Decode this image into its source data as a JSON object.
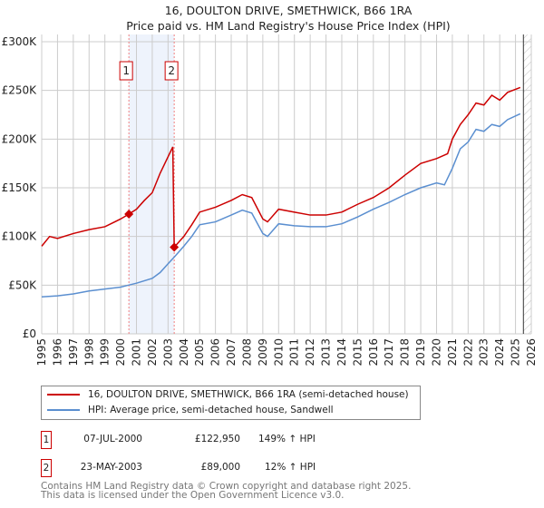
{
  "chart_data": {
    "type": "line",
    "title": "16, DOULTON DRIVE, SMETHWICK, B66 1RA",
    "subtitle": "Price paid vs. HM Land Registry's House Price Index (HPI)",
    "xlim": [
      1995,
      2026
    ],
    "ylim": [
      0,
      300000
    ],
    "x_ticks": [
      "1995",
      "1996",
      "1997",
      "1998",
      "1999",
      "2000",
      "2001",
      "2002",
      "2003",
      "2004",
      "2005",
      "2006",
      "2007",
      "2008",
      "2009",
      "2010",
      "2011",
      "2012",
      "2013",
      "2014",
      "2015",
      "2016",
      "2017",
      "2018",
      "2019",
      "2020",
      "2021",
      "2022",
      "2023",
      "2024",
      "2025",
      "2026"
    ],
    "y_ticks": [
      {
        "v": 0,
        "label": "£0"
      },
      {
        "v": 50000,
        "label": "£50K"
      },
      {
        "v": 100000,
        "label": "£100K"
      },
      {
        "v": 150000,
        "label": "£150K"
      },
      {
        "v": 200000,
        "label": "£200K"
      },
      {
        "v": 250000,
        "label": "£250K"
      },
      {
        "v": 300000,
        "label": "£300K"
      }
    ],
    "grid": true,
    "series": [
      {
        "name": "16, DOULTON DRIVE, SMETHWICK, B66 1RA (semi-detached house)",
        "color": "#cc0000",
        "x": [
          1995,
          1995.5,
          1996,
          1997,
          1998,
          1999,
          2000,
          2000.52,
          2001,
          2001.5,
          2002,
          2002.5,
          2003.3,
          2003.39,
          2004,
          2004.5,
          2005,
          2006,
          2007,
          2007.7,
          2008.3,
          2009,
          2009.3,
          2010,
          2011,
          2012,
          2013,
          2014,
          2015,
          2016,
          2017,
          2018,
          2019,
          2020,
          2020.7,
          2021,
          2021.5,
          2022,
          2022.5,
          2023,
          2023.5,
          2024,
          2024.5,
          2025.3
        ],
        "y": [
          90000,
          100000,
          98000,
          103000,
          107000,
          110000,
          118000,
          122950,
          128000,
          137000,
          145000,
          165000,
          192000,
          89000,
          100000,
          112000,
          125000,
          130000,
          137000,
          143000,
          140000,
          118000,
          115000,
          128000,
          125000,
          122000,
          122000,
          125000,
          133000,
          140000,
          150000,
          163000,
          175000,
          180000,
          185000,
          200000,
          215000,
          225000,
          237000,
          235000,
          245000,
          240000,
          248000,
          253000
        ]
      },
      {
        "name": "HPI: Average price, semi-detached house, Sandwell",
        "color": "#5b8fd0",
        "x": [
          1995,
          1996,
          1997,
          1998,
          1999,
          2000,
          2000.5,
          2001,
          2002,
          2002.5,
          2003,
          2003.4,
          2004,
          2004.5,
          2005,
          2006,
          2007,
          2007.7,
          2008.3,
          2009,
          2009.3,
          2010,
          2011,
          2012,
          2013,
          2014,
          2015,
          2016,
          2017,
          2018,
          2019,
          2020,
          2020.5,
          2021,
          2021.5,
          2022,
          2022.5,
          2023,
          2023.5,
          2024,
          2024.5,
          2025.3
        ],
        "y": [
          38000,
          39000,
          41000,
          44000,
          46000,
          48000,
          50000,
          52000,
          57000,
          63000,
          72000,
          79000,
          90000,
          100000,
          112000,
          115000,
          122000,
          127000,
          124000,
          103000,
          100000,
          113000,
          111000,
          110000,
          110000,
          113000,
          120000,
          128000,
          135000,
          143000,
          150000,
          155000,
          153000,
          170000,
          190000,
          197000,
          210000,
          208000,
          215000,
          213000,
          220000,
          226000
        ]
      }
    ],
    "sales": [
      {
        "id": "1",
        "x": 2000.52,
        "y": 122950,
        "date": "07-JUL-2000",
        "price": "£122,950",
        "hpi": "149% ↑ HPI"
      },
      {
        "id": "2",
        "x": 2003.39,
        "y": 89000,
        "date": "23-MAY-2003",
        "price": "£89,000",
        "hpi": "12% ↑ HPI"
      }
    ],
    "forecast_from": 2025.5
  },
  "footer": {
    "line1": "Contains HM Land Registry data © Crown copyright and database right 2025.",
    "line2": "This data is licensed under the Open Government Licence v3.0."
  }
}
